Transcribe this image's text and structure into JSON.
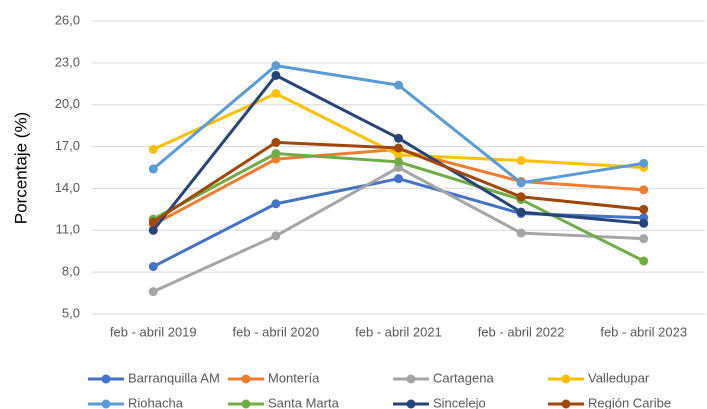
{
  "chart_data": {
    "type": "line",
    "y_label": "Porcentaje (%)",
    "categories": [
      "feb - abril 2019",
      "feb - abril 2020",
      "feb - abril 2021",
      "feb - abril 2022",
      "feb -  abril 2023"
    ],
    "series": [
      {
        "name": "Barranquilla AM",
        "color": "#4472c4",
        "values": [
          8.4,
          12.9,
          14.7,
          12.2,
          11.9
        ]
      },
      {
        "name": "Montería",
        "color": "#ed7d31",
        "values": [
          11.4,
          16.1,
          16.8,
          14.5,
          13.9
        ]
      },
      {
        "name": "Cartagena",
        "color": "#a5a5a5",
        "values": [
          6.6,
          10.6,
          15.5,
          10.8,
          10.4
        ]
      },
      {
        "name": "Valledupar",
        "color": "#ffc000",
        "values": [
          16.8,
          20.8,
          16.4,
          16.0,
          15.5
        ]
      },
      {
        "name": "Riohacha",
        "color": "#5b9bd5",
        "values": [
          15.4,
          22.8,
          21.4,
          14.4,
          15.8
        ]
      },
      {
        "name": "Santa Marta",
        "color": "#70ad47",
        "values": [
          11.8,
          16.5,
          15.9,
          13.2,
          8.8
        ]
      },
      {
        "name": "Sincelejo",
        "color": "#264478",
        "values": [
          11.0,
          22.1,
          17.6,
          12.3,
          11.5
        ]
      },
      {
        "name": "Región Caribe",
        "color": "#9e480e",
        "values": [
          11.6,
          17.3,
          16.9,
          13.4,
          12.5
        ]
      }
    ],
    "ylim": [
      5,
      26
    ],
    "yticks": [
      {
        "value": 5,
        "label": "5,0"
      },
      {
        "value": 8,
        "label": "8,0"
      },
      {
        "value": 11,
        "label": "11,0"
      },
      {
        "value": 14,
        "label": "14,0"
      },
      {
        "value": 17,
        "label": "17,0"
      },
      {
        "value": 20,
        "label": "20,0"
      },
      {
        "value": 23,
        "label": "23,0"
      },
      {
        "value": 26,
        "label": "26,0"
      }
    ],
    "grid": true,
    "legend": "bottom"
  }
}
